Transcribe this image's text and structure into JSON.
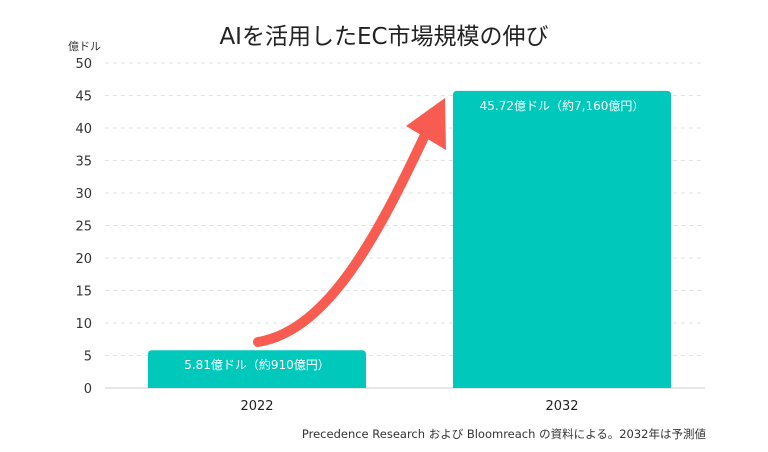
{
  "chart_data": {
    "type": "bar",
    "title": "AIを活用したEC市場規模の伸び",
    "ylabel": "億ドル",
    "xlabel": "",
    "categories": [
      "2022",
      "2032"
    ],
    "values": [
      5.81,
      45.72
    ],
    "data_labels": [
      "5.81億ドル（約910億円）",
      "45.72億ドル（約7,160億円）"
    ],
    "ylim": [
      0,
      50
    ],
    "yticks": [
      0,
      5,
      10,
      15,
      20,
      25,
      30,
      35,
      40,
      45,
      50
    ],
    "grid": true,
    "bar_color": "#00C9BC",
    "arrow_color": "#F85C50",
    "source_note": "Precedence Research および Bloomreach の資料による。2032年は予測値"
  }
}
